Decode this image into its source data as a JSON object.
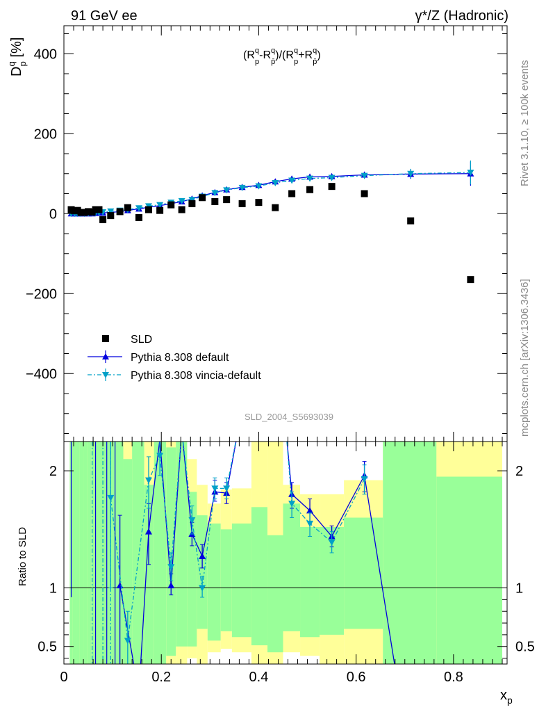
{
  "chart_data": [
    {
      "type": "scatter",
      "title_left": "91 GeV ee",
      "title_right": "γ*/Z (Hadronic)",
      "annotation": "(R",
      "annotation_full": "(R^q_p-R^q_p̄)/(R^q_p+R^q_p̄)",
      "ylabel": "D^q_p [%]",
      "ylabel_main": "D",
      "ylabel_sup": "q",
      "ylabel_sub": "p",
      "ylabel_tail": " [%]",
      "watermark": "SLD_2004_S5693039",
      "side_text_top": "Rivet 3.1.10, ≥ 100k events",
      "side_text_bottom": "mcplots.cern.ch [arXiv:1306.3436]",
      "xlim": [
        0,
        0.91
      ],
      "ylim": [
        -570,
        470
      ],
      "yticks": [
        -400,
        -200,
        0,
        200,
        400
      ],
      "ytick_labels": [
        "−400",
        "−200",
        "0",
        "200",
        "400"
      ],
      "legend_placement": "bottom-left",
      "series": [
        {
          "name": "SLD",
          "color": "#000000",
          "marker": "square",
          "x": [
            0.015,
            0.022,
            0.028,
            0.035,
            0.042,
            0.05,
            0.058,
            0.065,
            0.072,
            0.08,
            0.096,
            0.115,
            0.131,
            0.154,
            0.174,
            0.197,
            0.22,
            0.242,
            0.263,
            0.284,
            0.31,
            0.334,
            0.366,
            0.4,
            0.434,
            0.468,
            0.505,
            0.55,
            0.617,
            0.712,
            0.835
          ],
          "y": [
            10,
            7,
            8,
            3,
            3,
            5,
            4,
            10,
            10,
            -15,
            -5,
            5,
            15,
            -10,
            10,
            8,
            22,
            10,
            25,
            40,
            30,
            35,
            25,
            28,
            15,
            50,
            60,
            68,
            50,
            -18,
            -165
          ]
        },
        {
          "name": "Pythia 8.308 default",
          "color": "#0000dd",
          "marker": "triangle-up",
          "x": [
            0.015,
            0.022,
            0.028,
            0.035,
            0.042,
            0.05,
            0.058,
            0.065,
            0.072,
            0.08,
            0.096,
            0.115,
            0.131,
            0.154,
            0.174,
            0.197,
            0.22,
            0.242,
            0.263,
            0.284,
            0.31,
            0.334,
            0.366,
            0.4,
            0.434,
            0.468,
            0.505,
            0.55,
            0.617,
            0.712,
            0.835
          ],
          "y": [
            0,
            0,
            0,
            0,
            0,
            0,
            0,
            1,
            2,
            2,
            3,
            5,
            8,
            12,
            16,
            20,
            25,
            30,
            37,
            45,
            53,
            60,
            66,
            71,
            80,
            87,
            92,
            93,
            97,
            99,
            100
          ],
          "err": [
            6,
            5,
            4,
            4,
            3,
            3,
            3,
            3,
            3,
            3,
            3,
            3,
            3,
            3,
            3,
            3,
            3,
            3,
            3,
            4,
            4,
            4,
            4,
            4,
            5,
            5,
            6,
            6,
            8,
            12,
            30
          ]
        },
        {
          "name": "Pythia 8.308 vincia-default",
          "color": "#00a0c8",
          "marker": "triangle-down",
          "x": [
            0.015,
            0.022,
            0.028,
            0.035,
            0.042,
            0.05,
            0.058,
            0.065,
            0.072,
            0.08,
            0.096,
            0.115,
            0.131,
            0.154,
            0.174,
            0.197,
            0.22,
            0.242,
            0.263,
            0.284,
            0.31,
            0.334,
            0.366,
            0.4,
            0.434,
            0.468,
            0.505,
            0.55,
            0.617,
            0.712,
            0.835
          ],
          "y": [
            0,
            0,
            0,
            0,
            0,
            1,
            1,
            2,
            3,
            4,
            6,
            8,
            10,
            14,
            19,
            22,
            28,
            32,
            35,
            43,
            52,
            59,
            65,
            69,
            77,
            83,
            88,
            90,
            95,
            100,
            103
          ],
          "err": [
            6,
            5,
            4,
            4,
            3,
            3,
            3,
            3,
            3,
            3,
            3,
            3,
            3,
            3,
            3,
            3,
            3,
            3,
            3,
            4,
            4,
            4,
            4,
            4,
            5,
            5,
            6,
            6,
            8,
            12,
            30
          ]
        }
      ]
    },
    {
      "type": "line",
      "ylabel": "Ratio to SLD",
      "xlabel": "x",
      "xlabel_sub": "p",
      "xlim": [
        0,
        0.91
      ],
      "ylim": [
        0.35,
        2.25
      ],
      "yticks": [
        0.5,
        1,
        2
      ],
      "ytick_labels": [
        "0.5",
        "1",
        "2"
      ],
      "xticks": [
        0,
        0.2,
        0.4,
        0.6,
        0.8
      ],
      "xtick_labels": [
        "0",
        "0.2",
        "0.4",
        "0.6",
        "0.8"
      ],
      "band_colors": {
        "inner": "#99ff99",
        "outer": "#ffff99"
      },
      "bands": [
        {
          "x0": 0.012,
          "x1": 0.018,
          "in_lo": 0.35,
          "in_hi": 2.25,
          "out_lo": 0.35,
          "out_hi": 2.25
        },
        {
          "x0": 0.018,
          "x1": 0.025,
          "in_lo": 0.35,
          "in_hi": 2.25,
          "out_lo": 0.35,
          "out_hi": 2.25
        },
        {
          "x0": 0.025,
          "x1": 0.032,
          "in_lo": 0.35,
          "in_hi": 2.25,
          "out_lo": 0.35,
          "out_hi": 2.25
        },
        {
          "x0": 0.032,
          "x1": 0.04,
          "in_lo": 0.35,
          "in_hi": 2.25,
          "out_lo": 0.35,
          "out_hi": 2.25
        },
        {
          "x0": 0.04,
          "x1": 0.048,
          "in_lo": 0.35,
          "in_hi": 2.25,
          "out_lo": 0.35,
          "out_hi": 2.25
        },
        {
          "x0": 0.048,
          "x1": 0.056,
          "in_lo": 0.35,
          "in_hi": 2.25,
          "out_lo": 0.35,
          "out_hi": 2.25
        },
        {
          "x0": 0.056,
          "x1": 0.064,
          "in_lo": 0.35,
          "in_hi": 2.25,
          "out_lo": 0.35,
          "out_hi": 2.25
        },
        {
          "x0": 0.064,
          "x1": 0.072,
          "in_lo": 0.35,
          "in_hi": 2.25,
          "out_lo": 0.35,
          "out_hi": 2.25
        },
        {
          "x0": 0.072,
          "x1": 0.08,
          "in_lo": 0.35,
          "in_hi": 2.25,
          "out_lo": 0.35,
          "out_hi": 2.25
        },
        {
          "x0": 0.08,
          "x1": 0.088,
          "in_lo": 0.35,
          "in_hi": 2.25,
          "out_lo": 0.35,
          "out_hi": 2.25
        },
        {
          "x0": 0.088,
          "x1": 0.105,
          "in_lo": 0.35,
          "in_hi": 2.25,
          "out_lo": 0.35,
          "out_hi": 2.25
        },
        {
          "x0": 0.105,
          "x1": 0.122,
          "in_lo": 0.35,
          "in_hi": 2.25,
          "out_lo": 0.35,
          "out_hi": 2.25
        },
        {
          "x0": 0.122,
          "x1": 0.14,
          "in_lo": 0.35,
          "in_hi": 2.1,
          "out_lo": 0.35,
          "out_hi": 2.25
        },
        {
          "x0": 0.14,
          "x1": 0.165,
          "in_lo": 0.35,
          "in_hi": 2.25,
          "out_lo": 0.35,
          "out_hi": 2.25
        },
        {
          "x0": 0.165,
          "x1": 0.185,
          "in_lo": 0.35,
          "in_hi": 1.88,
          "out_lo": 0.35,
          "out_hi": 2.25
        },
        {
          "x0": 0.185,
          "x1": 0.21,
          "in_lo": 0.35,
          "in_hi": 2.25,
          "out_lo": 0.35,
          "out_hi": 2.25
        },
        {
          "x0": 0.21,
          "x1": 0.23,
          "in_lo": 0.42,
          "in_hi": 2.2,
          "out_lo": 0.35,
          "out_hi": 2.25
        },
        {
          "x0": 0.23,
          "x1": 0.253,
          "in_lo": 0.5,
          "in_hi": 2.25,
          "out_lo": 0.35,
          "out_hi": 2.25
        },
        {
          "x0": 0.253,
          "x1": 0.273,
          "in_lo": 0.5,
          "in_hi": 1.82,
          "out_lo": 0.4,
          "out_hi": 2.1
        },
        {
          "x0": 0.273,
          "x1": 0.295,
          "in_lo": 0.65,
          "in_hi": 1.62,
          "out_lo": 0.35,
          "out_hi": 1.88
        },
        {
          "x0": 0.295,
          "x1": 0.322,
          "in_lo": 0.55,
          "in_hi": 1.55,
          "out_lo": 0.45,
          "out_hi": 1.72
        },
        {
          "x0": 0.322,
          "x1": 0.345,
          "in_lo": 0.63,
          "in_hi": 1.5,
          "out_lo": 0.48,
          "out_hi": 1.84
        },
        {
          "x0": 0.345,
          "x1": 0.385,
          "in_lo": 0.58,
          "in_hi": 1.55,
          "out_lo": 0.45,
          "out_hi": 1.85
        },
        {
          "x0": 0.385,
          "x1": 0.418,
          "in_lo": 0.51,
          "in_hi": 1.69,
          "out_lo": 0.35,
          "out_hi": 2.25
        },
        {
          "x0": 0.418,
          "x1": 0.45,
          "in_lo": 0.45,
          "in_hi": 1.45,
          "out_lo": 0.35,
          "out_hi": 2.25
        },
        {
          "x0": 0.45,
          "x1": 0.485,
          "in_lo": 0.63,
          "in_hi": 1.72,
          "out_lo": 0.45,
          "out_hi": 1.88
        },
        {
          "x0": 0.485,
          "x1": 0.525,
          "in_lo": 0.58,
          "in_hi": 1.52,
          "out_lo": 0.42,
          "out_hi": 1.8
        },
        {
          "x0": 0.525,
          "x1": 0.575,
          "in_lo": 0.6,
          "in_hi": 1.52,
          "out_lo": 0.35,
          "out_hi": 1.8
        },
        {
          "x0": 0.575,
          "x1": 0.655,
          "in_lo": 0.65,
          "in_hi": 1.6,
          "out_lo": 0.35,
          "out_hi": 1.92
        },
        {
          "x0": 0.655,
          "x1": 0.765,
          "in_lo": 0.35,
          "in_hi": 2.25,
          "out_lo": 0.35,
          "out_hi": 2.25
        },
        {
          "x0": 0.765,
          "x1": 0.9,
          "in_lo": 0.35,
          "in_hi": 1.95,
          "out_lo": 0.35,
          "out_hi": 2.25
        }
      ],
      "series": [
        {
          "name": "Pythia 8.308 default",
          "color": "#0000dd",
          "points": [
            {
              "x": 0.115,
              "y": 1.02,
              "lo": 0.35,
              "hi": 1.62
            },
            {
              "x": 0.154,
              "y": 0.1
            },
            {
              "x": 0.174,
              "y": 1.48,
              "lo": 1.2,
              "hi": 1.72
            },
            {
              "x": 0.197,
              "y": 2.27
            },
            {
              "x": 0.22,
              "y": 1.02,
              "lo": 0.94,
              "hi": 1.12
            },
            {
              "x": 0.242,
              "y": 2.35
            },
            {
              "x": 0.263,
              "y": 1.46,
              "lo": 1.36,
              "hi": 1.56
            },
            {
              "x": 0.284,
              "y": 1.27,
              "lo": 1.17,
              "hi": 1.37
            },
            {
              "x": 0.31,
              "y": 1.82,
              "lo": 1.74,
              "hi": 1.92
            },
            {
              "x": 0.334,
              "y": 1.81,
              "lo": 1.72,
              "hi": 1.9
            },
            {
              "x": 0.36,
              "y": 2.4
            },
            {
              "x": 0.455,
              "y": 2.4
            },
            {
              "x": 0.468,
              "y": 1.8,
              "lo": 1.68,
              "hi": 1.9
            },
            {
              "x": 0.505,
              "y": 1.66,
              "lo": 1.55,
              "hi": 1.76
            },
            {
              "x": 0.55,
              "y": 1.44,
              "lo": 1.35,
              "hi": 1.53
            },
            {
              "x": 0.617,
              "y": 1.96,
              "lo": 1.82,
              "hi": 2.08
            },
            {
              "x": 0.7,
              "y": -0.2
            }
          ]
        },
        {
          "name": "Pythia 8.308 vincia-default",
          "color": "#00a0c8",
          "points": [
            {
              "x": 0.096,
              "y": 1.77,
              "lo": 1.0,
              "hi": 2.25
            },
            {
              "x": 0.131,
              "y": 0.55,
              "lo": 0.35,
              "hi": 0.8
            },
            {
              "x": 0.174,
              "y": 1.92,
              "lo": 1.68,
              "hi": 2.12
            },
            {
              "x": 0.197,
              "y": 2.13,
              "lo": 1.96,
              "hi": 2.25
            },
            {
              "x": 0.22,
              "y": 1.18,
              "lo": 1.06,
              "hi": 1.3
            },
            {
              "x": 0.242,
              "y": 2.35
            },
            {
              "x": 0.263,
              "y": 1.58,
              "lo": 1.46,
              "hi": 1.7
            },
            {
              "x": 0.284,
              "y": 1.0,
              "lo": 0.92,
              "hi": 1.1
            },
            {
              "x": 0.31,
              "y": 1.85,
              "lo": 1.76,
              "hi": 1.94
            },
            {
              "x": 0.334,
              "y": 1.85,
              "lo": 1.76,
              "hi": 1.94
            },
            {
              "x": 0.36,
              "y": 2.4
            },
            {
              "x": 0.455,
              "y": 2.4
            },
            {
              "x": 0.468,
              "y": 1.72,
              "lo": 1.6,
              "hi": 1.82
            },
            {
              "x": 0.505,
              "y": 1.55,
              "lo": 1.44,
              "hi": 1.64
            },
            {
              "x": 0.55,
              "y": 1.39,
              "lo": 1.3,
              "hi": 1.48
            },
            {
              "x": 0.617,
              "y": 1.93,
              "lo": 1.8,
              "hi": 2.05
            }
          ]
        }
      ]
    }
  ]
}
